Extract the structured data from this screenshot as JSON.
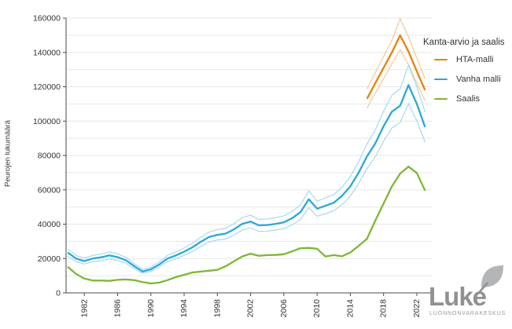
{
  "chart_data": {
    "type": "line",
    "title": "",
    "xlabel": "",
    "ylabel": "Peurojen lukumäärä",
    "ylim": [
      0,
      160000
    ],
    "ytick_step": 20000,
    "grid_step": 10000,
    "grid": true,
    "x_range": [
      1980,
      2023
    ],
    "xticks": [
      1982,
      1986,
      1990,
      1994,
      1998,
      2002,
      2006,
      2010,
      2014,
      2018,
      2022
    ],
    "legend_title": "Kanta-arvio ja saalis",
    "legend_position": "right",
    "series": [
      {
        "name": "HTA-malli",
        "color": "#e8820d",
        "band_color": "#f2c48e",
        "start_year": 2016,
        "values": [
          113000,
          122000,
          131000,
          140000,
          150000,
          140500,
          129000,
          118000
        ],
        "upper": [
          118700,
          128100,
          137600,
          147000,
          159500,
          149000,
          136800,
          124600
        ],
        "lower": [
          107600,
          116200,
          124800,
          133300,
          141500,
          133000,
          122000,
          111800
        ]
      },
      {
        "name": "Vanha malli",
        "color": "#29a8d8",
        "band_color": "#9ed7eb",
        "start_year": 1980,
        "values": [
          23500,
          20000,
          18500,
          20000,
          20700,
          21800,
          20800,
          19000,
          15500,
          12500,
          13700,
          16500,
          20000,
          21800,
          24000,
          26500,
          29700,
          32500,
          33800,
          34500,
          37000,
          40200,
          41500,
          39300,
          39500,
          40200,
          41100,
          43500,
          47000,
          54500,
          49000,
          50700,
          52500,
          56500,
          62000,
          70000,
          79500,
          87000,
          97000,
          105500,
          109000,
          121000,
          110000,
          96500
        ],
        "upper": [
          25600,
          21800,
          20200,
          21800,
          22600,
          23800,
          22700,
          20700,
          16900,
          13700,
          15000,
          18000,
          21800,
          23800,
          26200,
          28900,
          32400,
          35400,
          36800,
          37600,
          40300,
          43800,
          45200,
          42800,
          43000,
          43800,
          44800,
          47400,
          51200,
          59400,
          53400,
          55300,
          57200,
          61600,
          67600,
          76300,
          86700,
          94800,
          105700,
          115000,
          118800,
          132500,
          120000,
          105200
        ],
        "lower": [
          21400,
          18200,
          16800,
          18200,
          18800,
          19800,
          18900,
          17300,
          14100,
          11400,
          12500,
          15000,
          18200,
          19800,
          21800,
          24100,
          27000,
          29600,
          30800,
          31400,
          33700,
          36600,
          37800,
          35800,
          35900,
          36600,
          37400,
          39600,
          42800,
          49600,
          44600,
          46100,
          47800,
          51400,
          56400,
          63700,
          72300,
          79200,
          88300,
          96000,
          99200,
          110100,
          100100,
          87800
        ]
      },
      {
        "name": "Saalis",
        "color": "#7eb733",
        "start_year": 1980,
        "values": [
          15200,
          11000,
          8300,
          7200,
          7200,
          7000,
          7600,
          7800,
          7400,
          6300,
          5500,
          6000,
          7400,
          9200,
          10500,
          11900,
          12400,
          12900,
          13400,
          15500,
          18400,
          21200,
          22800,
          21600,
          22000,
          22100,
          22500,
          24200,
          26000,
          26200,
          25700,
          21200,
          22000,
          21300,
          23500,
          27400,
          31500,
          42000,
          52000,
          62000,
          69500,
          73500,
          69800,
          59500
        ]
      }
    ]
  },
  "legend": {
    "title": "Kanta-arvio ja saalis",
    "items": [
      {
        "label": "HTA-malli"
      },
      {
        "label": "Vanha malli"
      },
      {
        "label": "Saalis"
      }
    ]
  },
  "logo": {
    "name": "Luke",
    "subtitle": "LUONNONVARAKESKUS"
  },
  "colors": {
    "grid": "#e7e7e7",
    "axis": "#4a4a4a",
    "text": "#333333",
    "logo_gray": "#8f9193",
    "leaf_gray": "#b3b5b7"
  }
}
